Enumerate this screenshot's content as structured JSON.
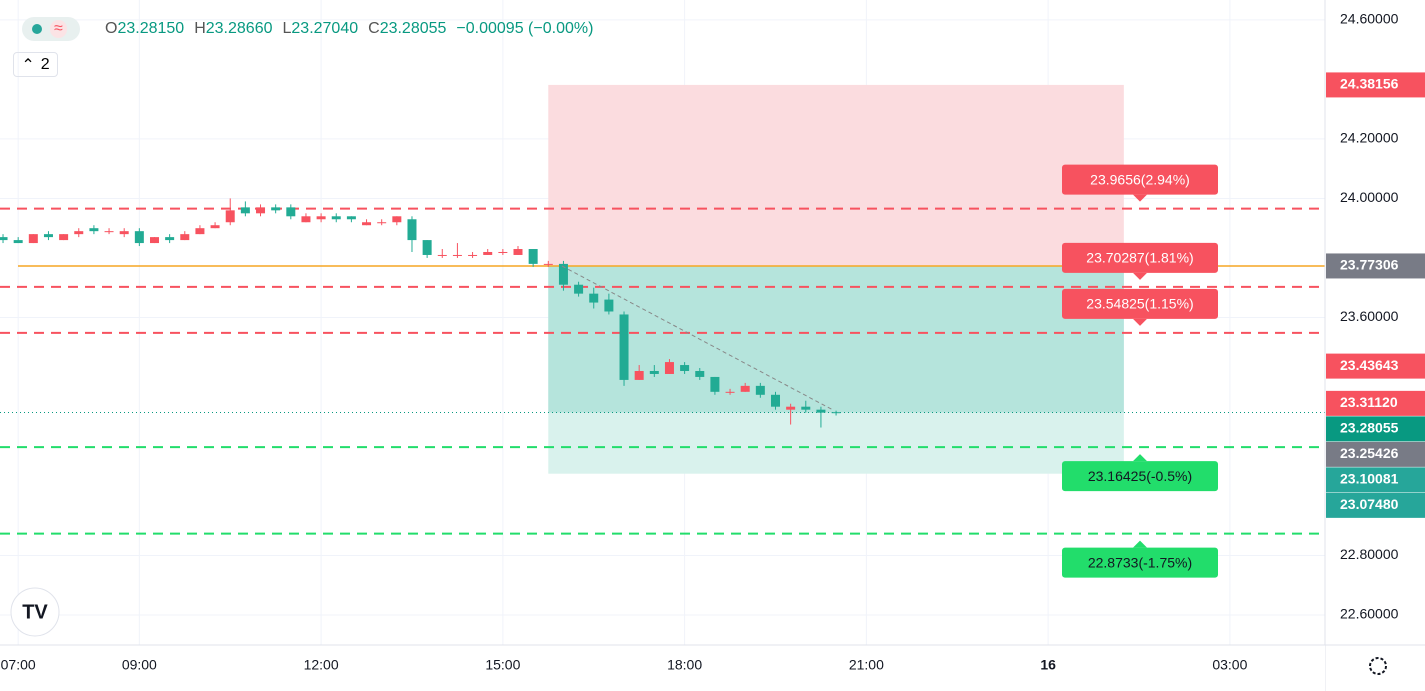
{
  "legend": {
    "badge_icon": "≈",
    "ohlc": [
      {
        "key": "O",
        "value": "23.28150"
      },
      {
        "key": "H",
        "value": "23.28660"
      },
      {
        "key": "L",
        "value": "23.27040"
      },
      {
        "key": "C",
        "value": "23.28055"
      }
    ],
    "change": "−0.00095 (−0.00%)",
    "collapsed_count": "2"
  },
  "chart_data": {
    "type": "candlestick",
    "x": [
      6.75,
      7,
      7.25,
      7.5,
      7.75,
      8,
      8.25,
      8.5,
      8.75,
      9,
      9.25,
      9.5,
      9.75,
      10,
      10.25,
      10.5,
      10.75,
      11,
      11.25,
      11.5,
      11.75,
      12,
      12.25,
      12.5,
      12.75,
      13,
      13.25,
      13.5,
      13.75,
      14,
      14.25,
      14.5,
      14.75,
      15,
      15.25,
      15.5,
      15.75,
      16,
      16.25,
      16.5,
      16.75,
      17,
      17.25,
      17.5,
      17.75,
      18,
      18.25,
      18.5,
      18.75,
      19,
      19.25,
      19.5,
      19.75,
      20,
      20.25,
      20.5
    ],
    "open": [
      23.87,
      23.86,
      23.85,
      23.88,
      23.86,
      23.88,
      23.9,
      23.89,
      23.88,
      23.89,
      23.85,
      23.87,
      23.86,
      23.88,
      23.9,
      23.92,
      23.97,
      23.95,
      23.97,
      23.97,
      23.92,
      23.93,
      23.94,
      23.94,
      23.91,
      23.92,
      23.92,
      23.93,
      23.86,
      23.81,
      23.81,
      23.81,
      23.81,
      23.82,
      23.81,
      23.83,
      23.78,
      23.78,
      23.71,
      23.68,
      23.66,
      23.61,
      23.39,
      23.42,
      23.41,
      23.44,
      23.42,
      23.4,
      23.35,
      23.35,
      23.37,
      23.34,
      23.29,
      23.3,
      23.29,
      23.2815
    ],
    "high": [
      23.88,
      23.87,
      23.88,
      23.89,
      23.88,
      23.9,
      23.91,
      23.9,
      23.9,
      23.9,
      23.87,
      23.88,
      23.89,
      23.91,
      23.92,
      24.0,
      23.99,
      23.98,
      23.98,
      23.98,
      23.95,
      23.95,
      23.95,
      23.94,
      23.93,
      23.93,
      23.94,
      23.94,
      23.86,
      23.83,
      23.85,
      23.82,
      23.83,
      23.83,
      23.84,
      23.83,
      23.79,
      23.79,
      23.72,
      23.7,
      23.68,
      23.62,
      23.44,
      23.44,
      23.46,
      23.45,
      23.43,
      23.4,
      23.36,
      23.38,
      23.38,
      23.35,
      23.31,
      23.32,
      23.3,
      23.2866
    ],
    "low": [
      23.85,
      23.85,
      23.85,
      23.86,
      23.86,
      23.87,
      23.88,
      23.88,
      23.87,
      23.84,
      23.85,
      23.85,
      23.86,
      23.88,
      23.9,
      23.91,
      23.94,
      23.94,
      23.95,
      23.93,
      23.92,
      23.92,
      23.92,
      23.92,
      23.91,
      23.91,
      23.91,
      23.82,
      23.8,
      23.8,
      23.8,
      23.8,
      23.81,
      23.81,
      23.81,
      23.77,
      23.77,
      23.69,
      23.67,
      23.63,
      23.61,
      23.37,
      23.39,
      23.4,
      23.41,
      23.41,
      23.39,
      23.34,
      23.34,
      23.35,
      23.33,
      23.29,
      23.24,
      23.28,
      23.23,
      23.2704
    ],
    "close": [
      23.86,
      23.85,
      23.88,
      23.87,
      23.88,
      23.89,
      23.89,
      23.89,
      23.89,
      23.85,
      23.87,
      23.86,
      23.88,
      23.9,
      23.91,
      23.96,
      23.95,
      23.97,
      23.96,
      23.94,
      23.94,
      23.94,
      23.93,
      23.93,
      23.92,
      23.92,
      23.94,
      23.86,
      23.81,
      23.81,
      23.81,
      23.81,
      23.82,
      23.82,
      23.83,
      23.78,
      23.78,
      23.71,
      23.68,
      23.65,
      23.62,
      23.39,
      23.42,
      23.41,
      23.45,
      23.42,
      23.4,
      23.35,
      23.35,
      23.37,
      23.34,
      23.3,
      23.3,
      23.29,
      23.28,
      23.28055
    ],
    "up_color": "#f7525f",
    "down_color": "#22ab94",
    "xlim": [
      6.7,
      28.57
    ],
    "xticks": [
      {
        "value": 7,
        "label": "07:00"
      },
      {
        "value": 9,
        "label": "09:00"
      },
      {
        "value": 12,
        "label": "12:00"
      },
      {
        "value": 15,
        "label": "15:00"
      },
      {
        "value": 18,
        "label": "18:00"
      },
      {
        "value": 21,
        "label": "21:00"
      },
      {
        "value": 24,
        "label": "16"
      },
      {
        "value": 27,
        "label": "03:00"
      }
    ],
    "ylim": [
      22.499,
      24.667
    ],
    "yticks": [
      {
        "value": 24.6,
        "label": "24.60000"
      },
      {
        "value": 24.2,
        "label": "24.20000"
      },
      {
        "value": 24.0,
        "label": "24.00000"
      },
      {
        "value": 23.6,
        "label": "23.60000"
      },
      {
        "value": 22.8,
        "label": "22.80000"
      },
      {
        "value": 22.6,
        "label": "22.60000"
      }
    ],
    "grid": true,
    "position": {
      "entry": 23.77306,
      "stop": 24.38156,
      "target": 23.0748,
      "current": 23.28055,
      "xrange": [
        15.75,
        25.25
      ]
    },
    "levels": [
      {
        "value": 23.9656,
        "label": "23.9656(2.94%)",
        "color": "#f7525f"
      },
      {
        "value": 23.70287,
        "label": "23.70287(1.81%)",
        "color": "#f7525f"
      },
      {
        "value": 23.54825,
        "label": "23.54825(1.15%)",
        "color": "#f7525f"
      },
      {
        "value": 23.16425,
        "label": "23.16425(-0.5%)",
        "color": "#22dd6b"
      },
      {
        "value": 22.8733,
        "label": "22.8733(-1.75%)",
        "color": "#22dd6b"
      }
    ],
    "price_labels": [
      {
        "value": 24.38156,
        "color": "#f7525f"
      },
      {
        "value": 23.77306,
        "color": "#787b86"
      },
      {
        "value": 23.43643,
        "color": "#f7525f"
      },
      {
        "value": 23.3112,
        "label": "23.31120",
        "color": "#f7525f"
      },
      {
        "value": 23.28055,
        "color": "#089981"
      },
      {
        "value": 23.25426,
        "color": "#787b86"
      },
      {
        "value": 23.10081,
        "color": "#26a69a"
      },
      {
        "value": 23.0748,
        "label": "23.07480",
        "color": "#26a69a"
      }
    ]
  }
}
